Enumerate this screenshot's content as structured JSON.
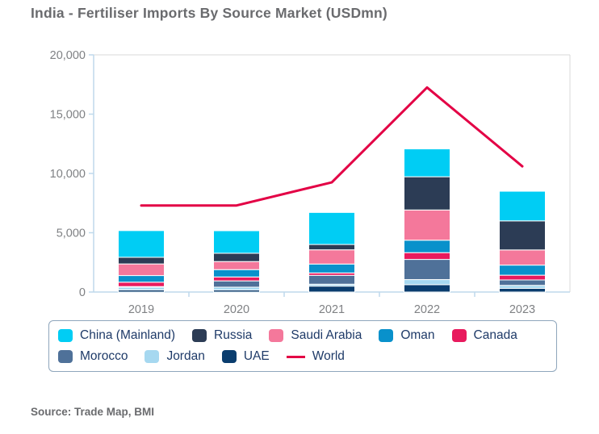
{
  "title": "India - Fertiliser Imports By Source Market (USDmn)",
  "source": "Source: Trade Map, BMI",
  "legend": {
    "row_break": 5
  },
  "colors": {
    "axis_blue": "#bfd9ec",
    "frame_gray": "#d8d8d8",
    "tick_label_gray": "#7f8184",
    "legend_text_navy": "#1e3a68"
  },
  "chart_data": {
    "type": "bar",
    "stacked": true,
    "title": "India - Fertiliser Imports By Source Market (USDmn)",
    "xlabel": "",
    "ylabel": "",
    "categories": [
      "2019",
      "2020",
      "2021",
      "2022",
      "2023"
    ],
    "series": [
      {
        "name": "China (Mainland)",
        "color": "#00cdf4",
        "values": [
          2250,
          1900,
          2700,
          2350,
          2500
        ]
      },
      {
        "name": "Russia",
        "color": "#2c3c55",
        "values": [
          560,
          700,
          450,
          2800,
          2450
        ]
      },
      {
        "name": "Saudi Arabia",
        "color": "#f4789b",
        "values": [
          980,
          680,
          1200,
          2550,
          1280
        ]
      },
      {
        "name": "Oman",
        "color": "#0991cb",
        "values": [
          560,
          620,
          750,
          1050,
          850
        ]
      },
      {
        "name": "Canada",
        "color": "#e81a5d",
        "values": [
          370,
          330,
          200,
          570,
          400
        ]
      },
      {
        "name": "Morocco",
        "color": "#4f7199",
        "values": [
          50,
          530,
          750,
          1700,
          460
        ]
      },
      {
        "name": "Jordan",
        "color": "#a6d8f0",
        "values": [
          230,
          240,
          160,
          430,
          250
        ]
      },
      {
        "name": "UAE",
        "color": "#0a3d6e",
        "values": [
          180,
          170,
          500,
          620,
          310
        ]
      }
    ],
    "stack_order": "reverse-of-series-list (UAE bottom, China top)",
    "line_series": {
      "name": "World",
      "color": "#e30045",
      "values": [
        7300,
        7300,
        9250,
        17250,
        10600
      ]
    },
    "ylim": [
      0,
      20000
    ],
    "ytick_step": 5000,
    "ytick_labels": [
      "0",
      "5,000",
      "10,000",
      "15,000",
      "20,000"
    ],
    "grid": false,
    "legend_position": "bottom"
  }
}
